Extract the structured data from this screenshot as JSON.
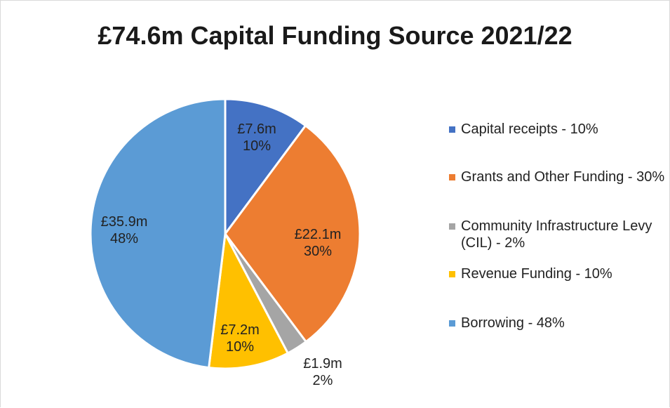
{
  "title": "£74.6m Capital Funding Source 2021/22",
  "chart_data": {
    "type": "pie",
    "title": "£74.6m Capital Funding Source 2021/22",
    "legend_position": "right",
    "slices": [
      {
        "legend": "Capital receipts - 10%",
        "value_label": "£7.6m",
        "pct_label": "10%",
        "value": 7.6,
        "color": "#4472C4"
      },
      {
        "legend": "Grants and Other Funding - 30%",
        "value_label": "£22.1m",
        "pct_label": "30%",
        "value": 22.1,
        "color": "#ED7D31"
      },
      {
        "legend": "Community Infrastructure Levy (CIL) - 2%",
        "value_label": "£1.9m",
        "pct_label": "2%",
        "value": 1.9,
        "color": "#A5A5A5"
      },
      {
        "legend": "Revenue Funding - 10%",
        "value_label": "£7.2m",
        "pct_label": "10%",
        "value": 7.2,
        "color": "#FFC000"
      },
      {
        "legend": "Borrowing - 48%",
        "value_label": "£35.9m",
        "pct_label": "48%",
        "value": 35.9,
        "color": "#5B9BD5"
      }
    ]
  }
}
